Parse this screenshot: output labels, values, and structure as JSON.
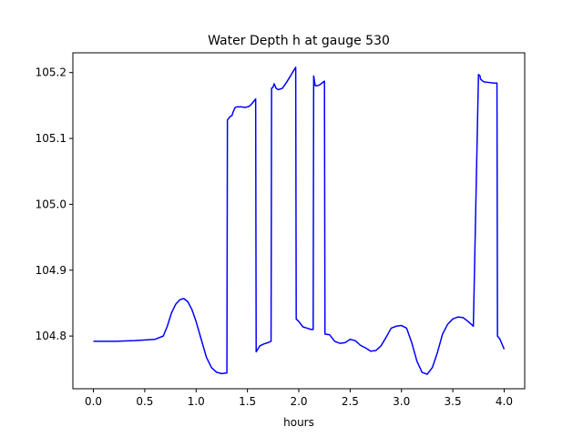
{
  "chart_data": {
    "type": "line",
    "title": "Water Depth h at gauge 530",
    "xlabel": "hours",
    "ylabel": "",
    "xlim": [
      -0.2,
      4.2
    ],
    "ylim": [
      104.72,
      105.23
    ],
    "xticks": [
      0.0,
      0.5,
      1.0,
      1.5,
      2.0,
      2.5,
      3.0,
      3.5,
      4.0
    ],
    "xtick_labels": [
      "0.0",
      "0.5",
      "1.0",
      "1.5",
      "2.0",
      "2.5",
      "3.0",
      "3.5",
      "4.0"
    ],
    "yticks": [
      104.8,
      104.9,
      105.0,
      105.1,
      105.2
    ],
    "ytick_labels": [
      "104.8",
      "104.9",
      "105.0",
      "105.1",
      "105.2"
    ],
    "grid": false,
    "series": [
      {
        "color": "#0000ff",
        "x": [
          0.0,
          0.2,
          0.4,
          0.6,
          0.68,
          0.72,
          0.76,
          0.8,
          0.84,
          0.88,
          0.92,
          0.96,
          1.0,
          1.05,
          1.1,
          1.15,
          1.2,
          1.25,
          1.3,
          1.305,
          1.33,
          1.35,
          1.36,
          1.38,
          1.4,
          1.44,
          1.48,
          1.52,
          1.55,
          1.58,
          1.585,
          1.62,
          1.66,
          1.7,
          1.73,
          1.735,
          1.75,
          1.76,
          1.78,
          1.8,
          1.84,
          1.88,
          1.92,
          1.95,
          1.97,
          1.975,
          2.0,
          2.04,
          2.08,
          2.12,
          2.14,
          2.145,
          2.16,
          2.18,
          2.2,
          2.25,
          2.255,
          2.3,
          2.35,
          2.4,
          2.45,
          2.5,
          2.55,
          2.6,
          2.65,
          2.7,
          2.75,
          2.8,
          2.85,
          2.9,
          2.95,
          3.0,
          3.05,
          3.1,
          3.15,
          3.2,
          3.25,
          3.3,
          3.35,
          3.4,
          3.45,
          3.5,
          3.55,
          3.6,
          3.65,
          3.7,
          3.75,
          3.765,
          3.77,
          3.8,
          3.85,
          3.9,
          3.93,
          3.935,
          3.96,
          4.0
        ],
        "y": [
          104.792,
          104.792,
          104.793,
          104.795,
          104.8,
          104.815,
          104.835,
          104.848,
          104.855,
          104.857,
          104.852,
          104.84,
          104.822,
          104.795,
          104.768,
          104.752,
          104.745,
          104.743,
          104.744,
          105.128,
          105.133,
          105.135,
          105.14,
          105.147,
          105.148,
          105.148,
          105.147,
          105.149,
          105.154,
          105.16,
          104.776,
          104.785,
          104.788,
          104.79,
          104.792,
          105.176,
          105.178,
          105.183,
          105.176,
          105.174,
          105.176,
          105.185,
          105.195,
          105.203,
          105.208,
          104.826,
          104.822,
          104.814,
          104.812,
          104.81,
          104.81,
          105.195,
          105.18,
          105.18,
          105.181,
          105.187,
          104.803,
          104.802,
          104.792,
          104.789,
          104.79,
          104.795,
          104.793,
          104.786,
          104.782,
          104.777,
          104.778,
          104.785,
          104.798,
          104.812,
          104.815,
          104.816,
          104.812,
          104.79,
          104.762,
          104.745,
          104.742,
          104.752,
          104.775,
          104.803,
          104.818,
          104.826,
          104.829,
          104.828,
          104.822,
          104.815,
          105.197,
          105.195,
          105.19,
          105.186,
          105.185,
          105.184,
          105.184,
          104.8,
          104.795,
          104.78
        ]
      }
    ]
  }
}
